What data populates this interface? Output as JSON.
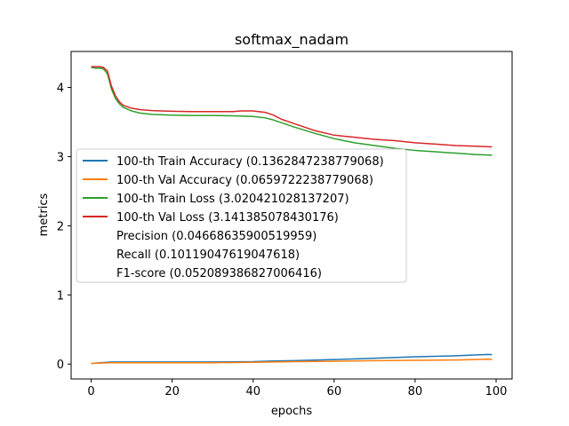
{
  "chart_data": {
    "type": "line",
    "title": "softmax_nadam",
    "xlabel": "epochs",
    "ylabel": "metrics",
    "xlim": [
      -4.95,
      103.95
    ],
    "ylim": [
      -0.215,
      4.52
    ],
    "xticks": [
      0,
      20,
      40,
      60,
      80,
      100
    ],
    "yticks": [
      0,
      1,
      2,
      3,
      4
    ],
    "grid": false,
    "legend_position": "center-left",
    "series": [
      {
        "name": "100-th Train Accuracy (0.1362847238779068)",
        "color": "#1f77b4",
        "x": [
          0,
          5,
          10,
          20,
          30,
          40,
          45,
          50,
          60,
          70,
          80,
          90,
          98,
          99
        ],
        "y": [
          0.01,
          0.03,
          0.03,
          0.03,
          0.03,
          0.035,
          0.045,
          0.05,
          0.065,
          0.085,
          0.105,
          0.12,
          0.14,
          0.136
        ]
      },
      {
        "name": "100-th Val Accuracy (0.0659722238779068)",
        "color": "#ff7f0e",
        "x": [
          0,
          5,
          10,
          20,
          30,
          40,
          45,
          50,
          60,
          70,
          80,
          90,
          98,
          99
        ],
        "y": [
          0.01,
          0.02,
          0.02,
          0.02,
          0.02,
          0.025,
          0.03,
          0.035,
          0.04,
          0.05,
          0.055,
          0.06,
          0.07,
          0.066
        ]
      },
      {
        "name": "100-th Train Loss (3.020421028137207)",
        "color": "#2ca02c",
        "x": [
          0,
          1,
          2,
          3,
          4,
          5,
          6,
          7,
          8,
          10,
          12,
          15,
          20,
          25,
          30,
          35,
          40,
          43,
          45,
          48,
          50,
          55,
          60,
          65,
          70,
          75,
          80,
          85,
          90,
          95,
          99
        ],
        "y": [
          4.29,
          4.28,
          4.28,
          4.27,
          4.2,
          3.98,
          3.84,
          3.76,
          3.71,
          3.66,
          3.63,
          3.61,
          3.6,
          3.595,
          3.595,
          3.59,
          3.58,
          3.56,
          3.53,
          3.47,
          3.43,
          3.34,
          3.26,
          3.2,
          3.16,
          3.12,
          3.09,
          3.07,
          3.05,
          3.03,
          3.02
        ]
      },
      {
        "name": "100-th Val Loss (3.141385078430176)",
        "color": "#d62728",
        "x": [
          0,
          1,
          2,
          3,
          4,
          5,
          6,
          7,
          8,
          10,
          12,
          15,
          20,
          25,
          30,
          35,
          37,
          40,
          43,
          45,
          47,
          50,
          55,
          60,
          65,
          70,
          75,
          80,
          85,
          90,
          95,
          99
        ],
        "y": [
          4.3,
          4.3,
          4.3,
          4.29,
          4.24,
          4.02,
          3.88,
          3.79,
          3.74,
          3.7,
          3.68,
          3.665,
          3.655,
          3.65,
          3.65,
          3.65,
          3.66,
          3.66,
          3.64,
          3.6,
          3.54,
          3.48,
          3.38,
          3.31,
          3.28,
          3.25,
          3.23,
          3.2,
          3.18,
          3.16,
          3.15,
          3.14
        ]
      }
    ],
    "extra_legend_entries": [
      "Precision (0.04668635900519959)",
      "Recall (0.10119047619047618)",
      "F1-score (0.052089386827006416)"
    ]
  }
}
